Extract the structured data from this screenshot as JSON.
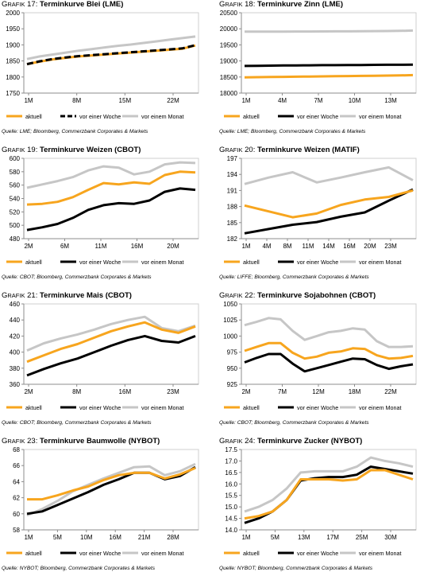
{
  "legend_labels": [
    "aktuell",
    "vor einer Woche",
    "vor einem Monat"
  ],
  "colors": {
    "aktuell": "#f7a51e",
    "woche": "#000000",
    "monat": "#c6c6c6",
    "axis": "#8c8c8c",
    "frame": "#cfcfcf"
  },
  "panels": [
    {
      "grafik_prefix": "G",
      "grafik_word": "RAFIK",
      "grafik_num": "17:",
      "title": "Terminkurve Blei (LME)",
      "source": "Quelle: LME; Bloomberg, Commerzbank Corporates & Markets",
      "chart_data": {
        "type": "line",
        "x_ticks": [
          "1M",
          "8M",
          "15M",
          "22M"
        ],
        "y_ticks": [
          "1750",
          "1800",
          "1850",
          "1900",
          "1950",
          "2000"
        ],
        "ylim": [
          1750,
          2000
        ],
        "series": [
          {
            "name": "aktuell",
            "values": [
              1840,
              1848,
              1855,
              1860,
              1864,
              1867,
              1870,
              1873,
              1876,
              1879,
              1882,
              1885,
              1888,
              1898
            ]
          },
          {
            "name": "vor einer Woche",
            "values": [
              1840,
              1849,
              1856,
              1861,
              1865,
              1868,
              1871,
              1874,
              1877,
              1880,
              1883,
              1886,
              1889,
              1899
            ]
          },
          {
            "name": "vor einem Monat",
            "values": [
              1856,
              1864,
              1870,
              1876,
              1882,
              1887,
              1892,
              1897,
              1901,
              1906,
              1911,
              1916,
              1921,
              1926
            ]
          }
        ]
      }
    },
    {
      "grafik_prefix": "G",
      "grafik_word": "RAFIK",
      "grafik_num": "18:",
      "title": "Terminkurve Zinn (LME)",
      "source": "Quelle: LME; Bloomberg, Commerzbank Corporates & Markets",
      "chart_data": {
        "type": "line",
        "x_ticks": [
          "1M",
          "4M",
          "7M",
          "10M",
          "13M"
        ],
        "y_ticks": [
          "18000",
          "18500",
          "19000",
          "19500",
          "20000",
          "20500"
        ],
        "ylim": [
          18000,
          20500
        ],
        "series": [
          {
            "name": "aktuell",
            "values": [
              18490,
              18495,
              18500,
              18505,
              18510,
              18515,
              18520,
              18525,
              18530,
              18535,
              18540,
              18545,
              18550,
              18560
            ]
          },
          {
            "name": "vor einer Woche",
            "values": [
              18845,
              18850,
              18855,
              18860,
              18862,
              18865,
              18868,
              18870,
              18872,
              18875,
              18878,
              18880,
              18882,
              18885
            ]
          },
          {
            "name": "vor einem Monat",
            "values": [
              19910,
              19910,
              19912,
              19912,
              19915,
              19915,
              19918,
              19920,
              19922,
              19925,
              19928,
              19930,
              19935,
              19945
            ]
          }
        ]
      }
    },
    {
      "grafik_prefix": "G",
      "grafik_word": "RAFIK",
      "grafik_num": "19:",
      "title": "Terminkurve Weizen (CBOT)",
      "source": "Quelle: CBOT; Bloomberg, Commerzbank Corporates & Markets",
      "chart_data": {
        "type": "line",
        "x_ticks": [
          "2M",
          "6M",
          "11M",
          "16M",
          "20M"
        ],
        "y_ticks": [
          "480",
          "500",
          "520",
          "540",
          "560",
          "580",
          "600"
        ],
        "ylim": [
          480,
          600
        ],
        "series": [
          {
            "name": "aktuell",
            "values": [
              531,
              532,
              535,
              542,
              553,
              563,
              561,
              564,
              562,
              575,
              580,
              579
            ]
          },
          {
            "name": "vor einer Woche",
            "values": [
              493,
              497,
              502,
              511,
              523,
              530,
              533,
              532,
              537,
              550,
              555,
              553
            ]
          },
          {
            "name": "vor einem Monat",
            "values": [
              556,
              561,
              566,
              572,
              582,
              588,
              586,
              576,
              580,
              591,
              594,
              593
            ]
          }
        ]
      }
    },
    {
      "grafik_prefix": "G",
      "grafik_word": "RAFIK",
      "grafik_num": "20:",
      "title": "Terminkurve Weizen (MATIF)",
      "source": "Quelle: LIFFE; Bloomberg, Commerzbank Corporates & Markets",
      "chart_data": {
        "type": "line",
        "x_ticks": [
          "1M",
          "4M",
          "8M",
          "11M",
          "14M",
          "16M",
          "20M",
          "23M"
        ],
        "y_ticks": [
          "182",
          "185",
          "188",
          "191",
          "194",
          "197"
        ],
        "ylim": [
          182,
          197
        ],
        "series": [
          {
            "name": "aktuell",
            "values": [
              188.2,
              187.1,
              186.0,
              186.7,
              188.3,
              189.3,
              189.8,
              191.0
            ]
          },
          {
            "name": "vor einer Woche",
            "values": [
              183.0,
              183.8,
              184.6,
              185.1,
              186.1,
              186.9,
              189.1,
              191.2
            ]
          },
          {
            "name": "vor einem Monat",
            "values": [
              192.2,
              193.4,
              194.4,
              192.5,
              193.4,
              194.4,
              195.3,
              192.9
            ]
          }
        ]
      }
    },
    {
      "grafik_prefix": "G",
      "grafik_word": "RAFIK",
      "grafik_num": "21:",
      "title": "Terminkurve Mais (CBOT)",
      "source": "Quelle: CBOT; Bloomberg, Commerzbank Corporates & Markets",
      "chart_data": {
        "type": "line",
        "x_ticks": [
          "2M",
          "8M",
          "16M",
          "23M"
        ],
        "y_ticks": [
          "360",
          "380",
          "400",
          "420",
          "440",
          "460"
        ],
        "ylim": [
          360,
          460
        ],
        "series": [
          {
            "name": "aktuell",
            "values": [
              388,
              396,
              404,
              410,
              418,
              426,
              432,
              437,
              428,
              424,
              432
            ]
          },
          {
            "name": "vor einer Woche",
            "values": [
              371,
              379,
              386,
              392,
              400,
              408,
              415,
              420,
              414,
              412,
              420
            ]
          },
          {
            "name": "vor einem Monat",
            "values": [
              402,
              411,
              417,
              422,
              428,
              435,
              440,
              444,
              430,
              426,
              433
            ]
          }
        ]
      }
    },
    {
      "grafik_prefix": "G",
      "grafik_word": "RAFIK",
      "grafik_num": "22:",
      "title": "Terminkurve Sojabohnen (CBOT)",
      "source": "Quelle: CBOT; Bloomberg, Commerzbank Corporates & Markets",
      "chart_data": {
        "type": "line",
        "x_ticks": [
          "2M",
          "7M",
          "12M",
          "18M",
          "22M"
        ],
        "y_ticks": [
          "925",
          "950",
          "975",
          "1000",
          "1025",
          "1050"
        ],
        "ylim": [
          925,
          1050
        ],
        "series": [
          {
            "name": "aktuell",
            "values": [
              977,
              983,
              989,
              989,
              974,
              965,
              968,
              974,
              976,
              981,
              980,
              970,
              965,
              966,
              969
            ]
          },
          {
            "name": "vor einer Woche",
            "values": [
              959,
              966,
              972,
              972,
              957,
              945,
              950,
              955,
              960,
              965,
              964,
              955,
              949,
              953,
              956
            ]
          },
          {
            "name": "vor einem Monat",
            "values": [
              1017,
              1022,
              1028,
              1026,
              1008,
              994,
              1000,
              1006,
              1008,
              1012,
              1010,
              992,
              983,
              983,
              984
            ]
          }
        ]
      }
    },
    {
      "grafik_prefix": "G",
      "grafik_word": "RAFIK",
      "grafik_num": "23:",
      "title": "Terminkurve Baumwolle (NYBOT)",
      "source": "Quelle: NYBOT; Bloomberg, Commerzbank Corporates & Markets",
      "chart_data": {
        "type": "line",
        "x_ticks": [
          "1M",
          "5M",
          "10M",
          "16M",
          "21M",
          "28M"
        ],
        "y_ticks": [
          "58",
          "60",
          "62",
          "64",
          "66",
          "68"
        ],
        "ylim": [
          58,
          68
        ],
        "series": [
          {
            "name": "aktuell",
            "values": [
              61.8,
              61.8,
              62.3,
              62.9,
              63.4,
              64.2,
              64.8,
              65.1,
              65.1,
              64.4,
              64.9,
              65.7
            ]
          },
          {
            "name": "vor einer Woche",
            "values": [
              60.0,
              60.3,
              61.1,
              61.9,
              62.7,
              63.6,
              64.3,
              65.1,
              65.1,
              64.3,
              64.7,
              65.8
            ]
          },
          {
            "name": "vor einem Monat",
            "values": [
              59.8,
              60.6,
              61.6,
              62.8,
              63.6,
              64.4,
              65.1,
              65.8,
              65.9,
              64.8,
              65.3,
              66.2
            ]
          }
        ]
      }
    },
    {
      "grafik_prefix": "G",
      "grafik_word": "RAFIK",
      "grafik_num": "24:",
      "title": "Terminkurve Zucker (NYBOT)",
      "source": "Quelle: NYBOT; Bloomberg, Commerzbank Corporates & Markets",
      "chart_data": {
        "type": "line",
        "x_ticks": [
          "1M",
          "5M",
          "13M",
          "17M",
          "25M",
          "30M"
        ],
        "y_ticks": [
          "14.0",
          "14.5",
          "15.0",
          "15.5",
          "16.0",
          "16.5",
          "17.0",
          "17.5"
        ],
        "ylim": [
          14.0,
          17.5
        ],
        "series": [
          {
            "name": "aktuell",
            "values": [
              14.5,
              14.6,
              14.8,
              15.3,
              16.2,
              16.2,
              16.2,
              16.15,
              16.2,
              16.6,
              16.6,
              16.4,
              16.2
            ]
          },
          {
            "name": "vor einer Woche",
            "values": [
              14.3,
              14.5,
              14.8,
              15.3,
              16.15,
              16.25,
              16.3,
              16.3,
              16.4,
              16.75,
              16.65,
              16.55,
              16.45
            ]
          },
          {
            "name": "vor einem Monat",
            "values": [
              14.8,
              15.0,
              15.3,
              15.8,
              16.5,
              16.55,
              16.55,
              16.55,
              16.75,
              17.15,
              17.0,
              16.9,
              16.75
            ]
          }
        ]
      }
    }
  ]
}
